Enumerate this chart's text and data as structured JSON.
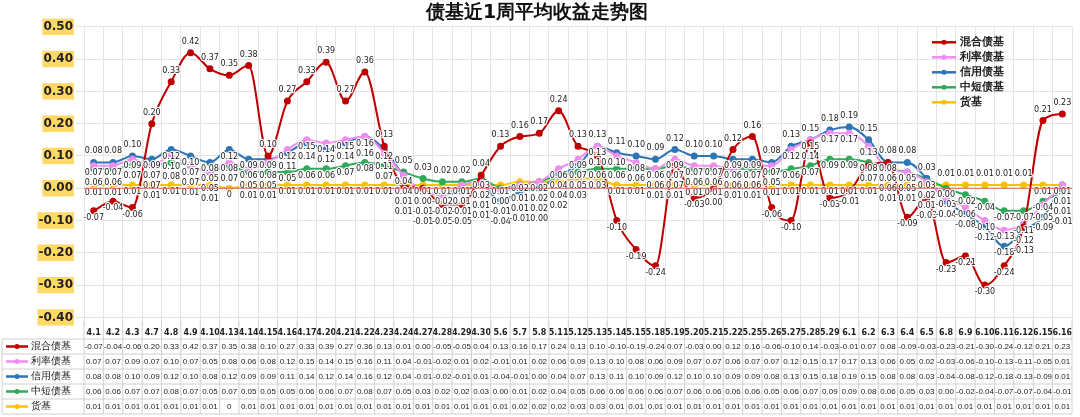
{
  "chart_data": {
    "type": "line",
    "title": "债基近1周平均收益走势图",
    "categories": [
      "4.1",
      "4.2",
      "4.3",
      "4.7",
      "4.8",
      "4.9",
      "4.10",
      "4.13",
      "4.14",
      "4.15",
      "4.16",
      "4.17",
      "4.20",
      "4.21",
      "4.22",
      "4.23",
      "4.24",
      "4.27",
      "4.28",
      "4.29",
      "4.30",
      "5.6",
      "5.7",
      "5.8",
      "5.11",
      "5.12",
      "5.13",
      "5.14",
      "5.15",
      "5.18",
      "5.19",
      "5.20",
      "5.21",
      "5.22",
      "5.25",
      "5.26",
      "5.27",
      "5.28",
      "5.29",
      "6.1",
      "6.2",
      "6.3",
      "6.4",
      "6.5",
      "6.8",
      "6.9",
      "6.10",
      "6.11",
      "6.12",
      "6.15",
      "6.16"
    ],
    "series": [
      {
        "name": "混合债基",
        "color": "#c00000",
        "values": [
          -0.07,
          -0.04,
          -0.06,
          0.2,
          0.33,
          0.42,
          0.37,
          0.35,
          0.38,
          0.1,
          0.27,
          0.33,
          0.39,
          0.27,
          0.36,
          0.13,
          0.01,
          0.0,
          -0.05,
          -0.05,
          0.04,
          0.13,
          0.16,
          0.17,
          0.24,
          0.13,
          0.1,
          -0.1,
          -0.19,
          -0.24,
          0.07,
          -0.03,
          0.0,
          0.12,
          0.16,
          -0.06,
          -0.1,
          0.14,
          -0.03,
          -0.01,
          0.07,
          0.08,
          -0.09,
          -0.03,
          -0.23,
          -0.21,
          -0.3,
          -0.24,
          -0.12,
          0.21,
          0.23
        ],
        "value_labels": [
          "-0.07",
          "-0.04",
          "-0.06",
          "0.20",
          "0.33",
          "0.42",
          "0.37",
          "0.35",
          "0.38",
          "0.10",
          "0.27",
          "0.33",
          "0.39",
          "0.27",
          "0.36",
          "0.13",
          "0.01",
          "0.00",
          "-0.05",
          "-0.05",
          "0.04",
          "0.13",
          "0.16",
          "0.17",
          "0.24",
          "0.13",
          "0.10",
          "-0.10",
          "-0.19",
          "-0.24",
          "0.07",
          "-0.03",
          "0.00",
          "0.12",
          "0.16",
          "-0.06",
          "-0.10",
          "0.14",
          "-0.03",
          "-0.01",
          "0.07",
          "0.08",
          "-0.09",
          "-0.03",
          "-0.23",
          "-0.21",
          "-0.30",
          "-0.24",
          "-0.12",
          "0.21",
          "0.23"
        ]
      },
      {
        "name": "利率债基",
        "color": "#f08cf0",
        "values": [
          0.07,
          0.07,
          0.09,
          0.07,
          0.1,
          0.07,
          0.05,
          0.08,
          0.06,
          0.08,
          0.12,
          0.15,
          0.14,
          0.15,
          0.16,
          0.11,
          0.04,
          -0.01,
          -0.02,
          0.01,
          0.02,
          -0.01,
          0.01,
          0.02,
          0.06,
          0.09,
          0.13,
          0.1,
          0.08,
          0.06,
          0.09,
          0.07,
          0.07,
          0.06,
          0.07,
          0.07,
          0.12,
          0.15,
          0.17,
          0.17,
          0.13,
          0.06,
          0.05,
          0.02,
          -0.03,
          -0.06,
          -0.1,
          -0.13,
          -0.11,
          -0.05,
          0.01
        ],
        "value_labels": [
          "0.07",
          "0.07",
          "0.09",
          "0.07",
          "0.10",
          "0.07",
          "0.05",
          "0.08",
          "0.06",
          "0.08",
          "0.12",
          "0.15",
          "0.14",
          "0.15",
          "0.16",
          "0.11",
          "0.04",
          "-0.01",
          "-0.02",
          "0.01",
          "0.02",
          "-0.01",
          "0.01",
          "0.02",
          "0.06",
          "0.09",
          "0.13",
          "0.10",
          "0.08",
          "0.06",
          "0.09",
          "0.07",
          "0.07",
          "0.06",
          "0.07",
          "0.07",
          "0.12",
          "0.15",
          "0.17",
          "0.17",
          "0.13",
          "0.06",
          "0.05",
          "0.02",
          "-0.03",
          "-0.06",
          "-0.10",
          "-0.13",
          "-0.11",
          "-0.05",
          "0.01"
        ]
      },
      {
        "name": "信用债基",
        "color": "#2e75b6",
        "values": [
          0.08,
          0.08,
          0.1,
          0.09,
          0.12,
          0.1,
          0.08,
          0.12,
          0.09,
          0.09,
          0.11,
          0.14,
          0.12,
          0.14,
          0.16,
          0.12,
          0.04,
          -0.01,
          -0.02,
          -0.01,
          0.01,
          -0.04,
          -0.01,
          0.0,
          0.04,
          0.07,
          0.13,
          0.11,
          0.1,
          0.09,
          0.12,
          0.1,
          0.1,
          0.09,
          0.09,
          0.08,
          0.13,
          0.15,
          0.18,
          0.19,
          0.15,
          0.08,
          0.08,
          0.03,
          -0.04,
          -0.08,
          -0.12,
          -0.18,
          -0.13,
          -0.09,
          0.01
        ],
        "value_labels": [
          "0.08",
          "0.08",
          "0.10",
          "0.09",
          "0.12",
          "0.10",
          "0.08",
          "0.12",
          "0.09",
          "0.09",
          "0.11",
          "0.14",
          "0.12",
          "0.14",
          "0.16",
          "0.12",
          "0.04",
          "-0.01",
          "-0.02",
          "-0.01",
          "0.01",
          "-0.04",
          "-0.01",
          "0.00",
          "0.04",
          "0.07",
          "0.13",
          "0.11",
          "0.10",
          "0.09",
          "0.12",
          "0.10",
          "0.10",
          "0.09",
          "0.09",
          "0.08",
          "0.13",
          "0.15",
          "0.18",
          "0.19",
          "0.15",
          "0.08",
          "0.08",
          "0.03",
          "-0.04",
          "-0.08",
          "-0.12",
          "-0.18",
          "-0.13",
          "-0.09",
          "0.01"
        ]
      },
      {
        "name": "中短债基",
        "color": "#2eaa58",
        "values": [
          0.06,
          0.06,
          0.07,
          0.07,
          0.08,
          0.07,
          0.05,
          0.07,
          0.05,
          0.05,
          0.05,
          0.06,
          0.06,
          0.07,
          0.08,
          0.07,
          0.05,
          0.03,
          0.02,
          0.02,
          0.03,
          0.0,
          0.01,
          0.02,
          0.04,
          0.05,
          0.06,
          0.06,
          0.06,
          0.06,
          0.07,
          0.06,
          0.06,
          0.06,
          0.06,
          0.05,
          0.06,
          0.07,
          0.09,
          0.09,
          0.08,
          0.06,
          0.05,
          0.03,
          0.0,
          -0.02,
          -0.04,
          -0.07,
          -0.07,
          -0.04,
          -0.01
        ],
        "value_labels": [
          "0.06",
          "0.06",
          "0.07",
          "0.07",
          "0.08",
          "0.07",
          "0.05",
          "0.07",
          "0.05",
          "0.05",
          "0.05",
          "0.06",
          "0.06",
          "0.07",
          "0.08",
          "0.07",
          "0.05",
          "0.03",
          "0.02",
          "0.02",
          "0.03",
          "0.00",
          "0.01",
          "0.02",
          "0.04",
          "0.05",
          "0.06",
          "0.06",
          "0.06",
          "0.06",
          "0.07",
          "0.06",
          "0.06",
          "0.06",
          "0.06",
          "0.05",
          "0.06",
          "0.07",
          "0.09",
          "0.09",
          "0.08",
          "0.06",
          "0.05",
          "0.03",
          "0.00",
          "-0.02",
          "-0.04",
          "-0.07",
          "-0.07",
          "-0.04",
          "-0.01"
        ]
      },
      {
        "name": "货基",
        "color": "#ffc000",
        "values": [
          0.01,
          0.01,
          0.01,
          0.01,
          0.01,
          0.01,
          0.01,
          0,
          0.01,
          0.01,
          0.01,
          0.01,
          0.01,
          0.01,
          0.01,
          0.01,
          0.01,
          0.01,
          0.01,
          0.01,
          0.01,
          0.01,
          0.02,
          0.02,
          0.02,
          0.03,
          0.03,
          0.01,
          0.01,
          0.01,
          0.01,
          0.01,
          0.01,
          0.01,
          0.01,
          0.01,
          0.01,
          0.01,
          0.01,
          0.01,
          0.01,
          0.01,
          0.01,
          0.01,
          0.01,
          0.01,
          0.01,
          0.01,
          0.01,
          0.01,
          0.01
        ],
        "value_labels": [
          "0.01",
          "0.01",
          "0.01",
          "0.01",
          "0.01",
          "0.01",
          "0.01",
          "0",
          "0.01",
          "0.01",
          "0.01",
          "0.01",
          "0.01",
          "0.01",
          "0.01",
          "0.01",
          "0.01",
          "0.01",
          "0.01",
          "0.01",
          "0.01",
          "0.01",
          "0.02",
          "0.02",
          "0.02",
          "0.03",
          "0.03",
          "0.01",
          "0.01",
          "0.01",
          "0.01",
          "0.01",
          "0.01",
          "0.01",
          "0.01",
          "0.01",
          "0.01",
          "0.01",
          "0.01",
          "0.01",
          "0.01",
          "0.01",
          "0.01",
          "0.01",
          "0.01",
          "0.01",
          "0.01",
          "0.01",
          "0.01",
          "0.01",
          "0.01"
        ]
      }
    ],
    "ylim": [
      -0.4,
      0.5
    ],
    "yticks": [
      {
        "value": -0.4,
        "label": "-0.40"
      },
      {
        "value": -0.3,
        "label": "-0.30"
      },
      {
        "value": -0.2,
        "label": "-0.20"
      },
      {
        "value": -0.1,
        "label": "-0.10"
      },
      {
        "value": 0,
        "label": "0.00"
      },
      {
        "value": 0.1,
        "label": "0.10"
      },
      {
        "value": 0.2,
        "label": "0.20"
      },
      {
        "value": 0.3,
        "label": "0.30"
      },
      {
        "value": 0.4,
        "label": "0.40"
      },
      {
        "value": 0.5,
        "label": "0.50"
      }
    ],
    "ref_lines": [
      {
        "axis": "y",
        "value": 0,
        "color": "#e06060"
      }
    ],
    "grid": true,
    "legend": "top right",
    "marker": "circle",
    "line_style": "solid"
  }
}
